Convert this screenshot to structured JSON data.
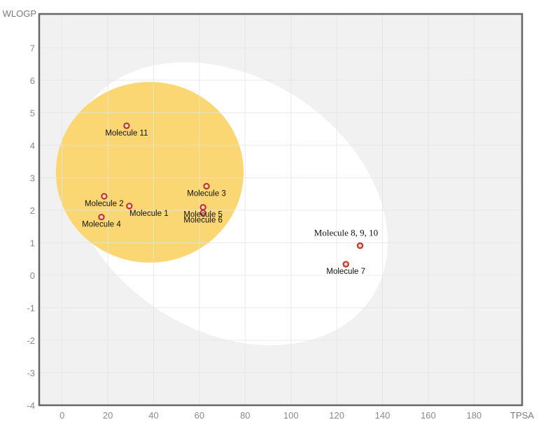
{
  "chart_data": {
    "type": "scatter",
    "title": "",
    "xlabel": "TPSA",
    "ylabel": "WLOGP",
    "xlim": [
      -10,
      201
    ],
    "ylim": [
      -4,
      8.04
    ],
    "xticks": [
      0,
      20,
      40,
      60,
      80,
      100,
      120,
      140,
      160,
      180
    ],
    "yticks": [
      -4,
      -3,
      -2,
      -1,
      0,
      1,
      2,
      3,
      4,
      5,
      6,
      7
    ],
    "grid": true,
    "regions": [
      {
        "name": "white-region",
        "color": "#ffffff",
        "cx": 72.5,
        "cy": 2.2,
        "rx": 75,
        "ry": 3.9,
        "rotation_deg": 33
      },
      {
        "name": "yolk-region",
        "color": "#fbd774",
        "cx": 38.3,
        "cy": 3.17,
        "rx": 41,
        "ry": 2.78,
        "rotation_deg": 0
      }
    ],
    "points": [
      {
        "label": "Molecule 1",
        "x": 29.4,
        "y": 2.13,
        "label_pos": "below-right"
      },
      {
        "label": "Molecule 2",
        "x": 18.4,
        "y": 2.43,
        "label_pos": "below"
      },
      {
        "label": "Molecule 3",
        "x": 63.1,
        "y": 2.74,
        "label_pos": "below"
      },
      {
        "label": "Molecule 4",
        "x": 17.2,
        "y": 1.79,
        "label_pos": "below"
      },
      {
        "label": "Molecule 5",
        "x": 61.6,
        "y": 2.09,
        "label_pos": "below"
      },
      {
        "label": "Molecule 6",
        "x": 61.6,
        "y": 1.92,
        "label_pos": "below"
      },
      {
        "label": "Molecule 7",
        "x": 124.0,
        "y": 0.34,
        "label_pos": "below"
      },
      {
        "label": "Molecule 8, 9, 10",
        "x": 130.2,
        "y": 0.91,
        "label_pos": "above",
        "serif": true
      },
      {
        "label": "Molecule 11",
        "x": 28.2,
        "y": 4.6,
        "label_pos": "below"
      }
    ],
    "colors": {
      "plot_bg": "#f1f1f1",
      "grid": "#e4e4e4",
      "frame": "#666666",
      "point_stroke": "#c0392b",
      "point_fill": "#f3d6cf"
    }
  }
}
